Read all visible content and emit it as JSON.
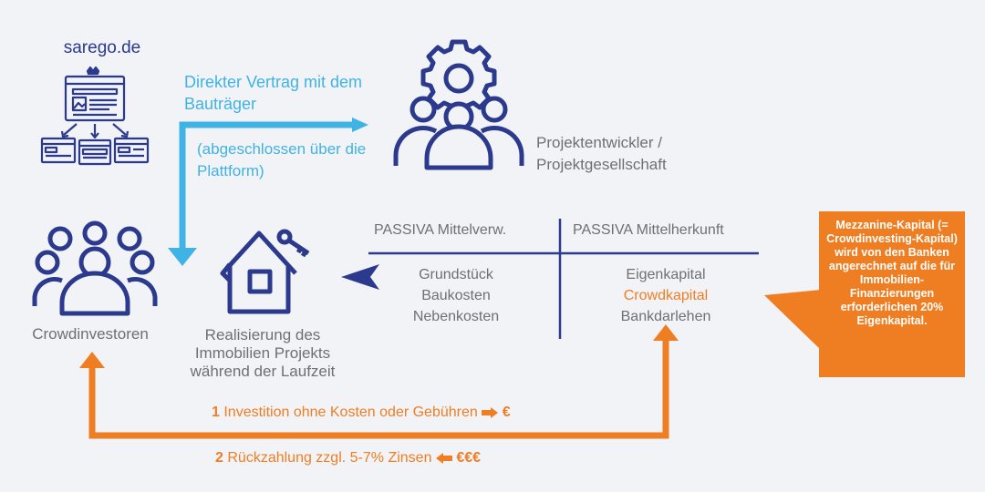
{
  "platform": {
    "name": "sarego.de"
  },
  "direct_contract": {
    "title": "Direkter Vertrag mit dem Bauträger",
    "note": "(abgeschlossen über die Plattform)"
  },
  "developer": {
    "label_line1": "Projektentwickler /",
    "label_line2": "Projektgesellschaft"
  },
  "investors": {
    "label": "Crowdinvestoren"
  },
  "realisation": {
    "line1": "Realisierung des",
    "line2": "Immobilien Projekts",
    "line3": "während der Laufzeit"
  },
  "passiva": {
    "left_header": "PASSIVA Mittelverw.",
    "right_header": "PASSIVA Mittelherkunft",
    "left_items": [
      "Grundstück",
      "Baukosten",
      "Nebenkosten"
    ],
    "right_items": [
      "Eigenkapital",
      "Crowdkapital",
      "Bankdarlehen"
    ]
  },
  "flows": {
    "step1_number": "1",
    "step1_text": "Investition ohne Kosten oder Gebühren",
    "step1_symbol": "€",
    "step2_number": "2",
    "step2_text": "Rückzahlung zzgl. 5-7% Zinsen",
    "step2_symbol": "€€€"
  },
  "callout": {
    "text": "Mezzanine-Kapital (= Crowdinvesting-Kapital) wird von den Banken angerechnet auf die für Immobilien-Finanzierungen erforderlichen 20% Eigenkapital."
  },
  "colors": {
    "navy": "#2b3a8c",
    "cyan": "#3fb3e3",
    "orange": "#ef7d22",
    "gray": "#6f6f74",
    "background": "#f2f3f7"
  }
}
